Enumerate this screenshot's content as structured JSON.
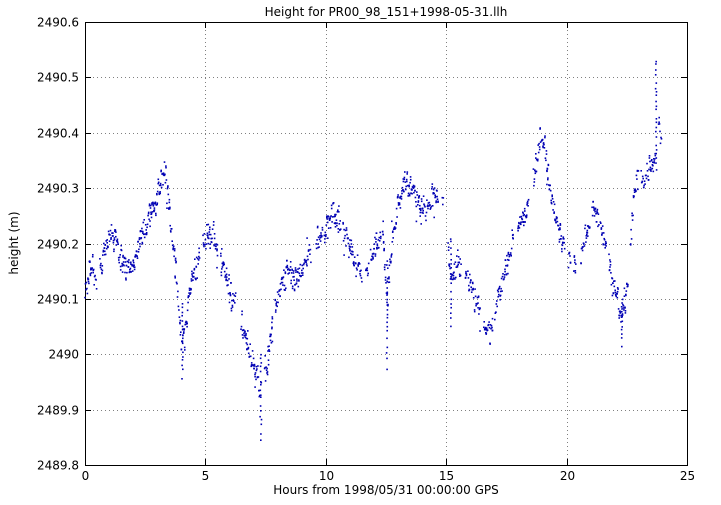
{
  "window": {
    "title": "Height for PR00_98_151+1998-05-31.llh"
  },
  "chart_data": {
    "type": "scatter",
    "title": "Height for PR00_98_151+1998-05-31.llh",
    "xlabel": "Hours from 1998/05/31 00:00:00 GPS",
    "ylabel": "height (m)",
    "xlim": [
      0,
      25
    ],
    "ylim": [
      2489.8,
      2490.6
    ],
    "xticks": [
      0,
      5,
      10,
      15,
      20,
      25
    ],
    "yticks": [
      2489.8,
      2489.9,
      2490,
      2490.1,
      2490.2,
      2490.3,
      2490.4,
      2490.5,
      2490.6
    ],
    "ytick_labels": [
      "2489.8",
      "2489.9",
      "2490",
      "2490.1",
      "2490.2",
      "2490.3",
      "2490.4",
      "2490.5",
      "2490.6"
    ],
    "grid": true,
    "grid_style": "dotted",
    "legend": "none",
    "point_color": "#0000b4",
    "frame_color": "#000000",
    "grid_color": "#808080",
    "sample_step_hours": 0.02,
    "noise_std_m": 0.022,
    "trend": [
      [
        0.0,
        2490.11
      ],
      [
        0.25,
        2490.16
      ],
      [
        0.5,
        2490.13
      ],
      [
        0.8,
        2490.19
      ],
      [
        1.1,
        2490.22
      ],
      [
        1.4,
        2490.19
      ],
      [
        1.7,
        2490.15
      ],
      [
        2.0,
        2490.16
      ],
      [
        2.3,
        2490.21
      ],
      [
        2.6,
        2490.24
      ],
      [
        2.9,
        2490.27
      ],
      [
        3.1,
        2490.31
      ],
      [
        3.3,
        2490.33
      ],
      [
        3.5,
        2490.27
      ],
      [
        3.7,
        2490.18
      ],
      [
        3.9,
        2490.08
      ],
      [
        4.05,
        2490.01
      ],
      [
        4.2,
        2490.06
      ],
      [
        4.4,
        2490.12
      ],
      [
        4.7,
        2490.17
      ],
      [
        5.0,
        2490.21
      ],
      [
        5.3,
        2490.22
      ],
      [
        5.6,
        2490.17
      ],
      [
        5.9,
        2490.13
      ],
      [
        6.2,
        2490.1
      ],
      [
        6.5,
        2490.05
      ],
      [
        6.8,
        2490.01
      ],
      [
        7.1,
        2489.97
      ],
      [
        7.3,
        2489.93
      ],
      [
        7.5,
        2489.97
      ],
      [
        7.8,
        2490.06
      ],
      [
        8.1,
        2490.12
      ],
      [
        8.4,
        2490.15
      ],
      [
        8.7,
        2490.13
      ],
      [
        9.0,
        2490.15
      ],
      [
        9.3,
        2490.18
      ],
      [
        9.6,
        2490.2
      ],
      [
        10.0,
        2490.23
      ],
      [
        10.3,
        2490.26
      ],
      [
        10.6,
        2490.24
      ],
      [
        10.9,
        2490.2
      ],
      [
        11.2,
        2490.17
      ],
      [
        11.5,
        2490.14
      ],
      [
        11.8,
        2490.16
      ],
      [
        12.1,
        2490.2
      ],
      [
        12.35,
        2490.24
      ],
      [
        12.55,
        2490.08
      ],
      [
        12.7,
        2490.18
      ],
      [
        13.0,
        2490.27
      ],
      [
        13.3,
        2490.31
      ],
      [
        13.6,
        2490.3
      ],
      [
        13.9,
        2490.27
      ],
      [
        14.2,
        2490.26
      ],
      [
        14.5,
        2490.29
      ],
      [
        14.8,
        2490.28
      ],
      [
        15.0,
        2490.24
      ],
      [
        15.2,
        2490.13
      ],
      [
        15.45,
        2490.17
      ],
      [
        15.7,
        2490.15
      ],
      [
        16.0,
        2490.13
      ],
      [
        16.3,
        2490.09
      ],
      [
        16.6,
        2490.05
      ],
      [
        16.9,
        2490.04
      ],
      [
        17.2,
        2490.11
      ],
      [
        17.5,
        2490.16
      ],
      [
        17.8,
        2490.2
      ],
      [
        18.1,
        2490.24
      ],
      [
        18.4,
        2490.27
      ],
      [
        18.7,
        2490.33
      ],
      [
        18.95,
        2490.4
      ],
      [
        19.1,
        2490.38
      ],
      [
        19.3,
        2490.3
      ],
      [
        19.6,
        2490.24
      ],
      [
        19.9,
        2490.2
      ],
      [
        20.2,
        2490.17
      ],
      [
        20.5,
        2490.16
      ],
      [
        20.8,
        2490.21
      ],
      [
        21.1,
        2490.27
      ],
      [
        21.4,
        2490.23
      ],
      [
        21.7,
        2490.18
      ],
      [
        22.0,
        2490.12
      ],
      [
        22.3,
        2490.07
      ],
      [
        22.55,
        2490.12
      ],
      [
        22.8,
        2490.29
      ],
      [
        23.0,
        2490.32
      ],
      [
        23.2,
        2490.31
      ],
      [
        23.45,
        2490.33
      ],
      [
        23.65,
        2490.35
      ],
      [
        23.8,
        2490.44
      ],
      [
        23.9,
        2490.38
      ]
    ],
    "spikes": [
      {
        "x": 4.05,
        "y_from": 2490.1,
        "y_to": 2489.95
      },
      {
        "x": 7.3,
        "y_from": 2490.0,
        "y_to": 2489.845
      },
      {
        "x": 12.55,
        "y_from": 2490.17,
        "y_to": 2489.97
      },
      {
        "x": 15.2,
        "y_from": 2490.21,
        "y_to": 2490.05
      },
      {
        "x": 22.3,
        "y_from": 2490.1,
        "y_to": 2489.99
      },
      {
        "x": 23.72,
        "y_from": 2490.33,
        "y_to": 2490.545
      }
    ]
  }
}
